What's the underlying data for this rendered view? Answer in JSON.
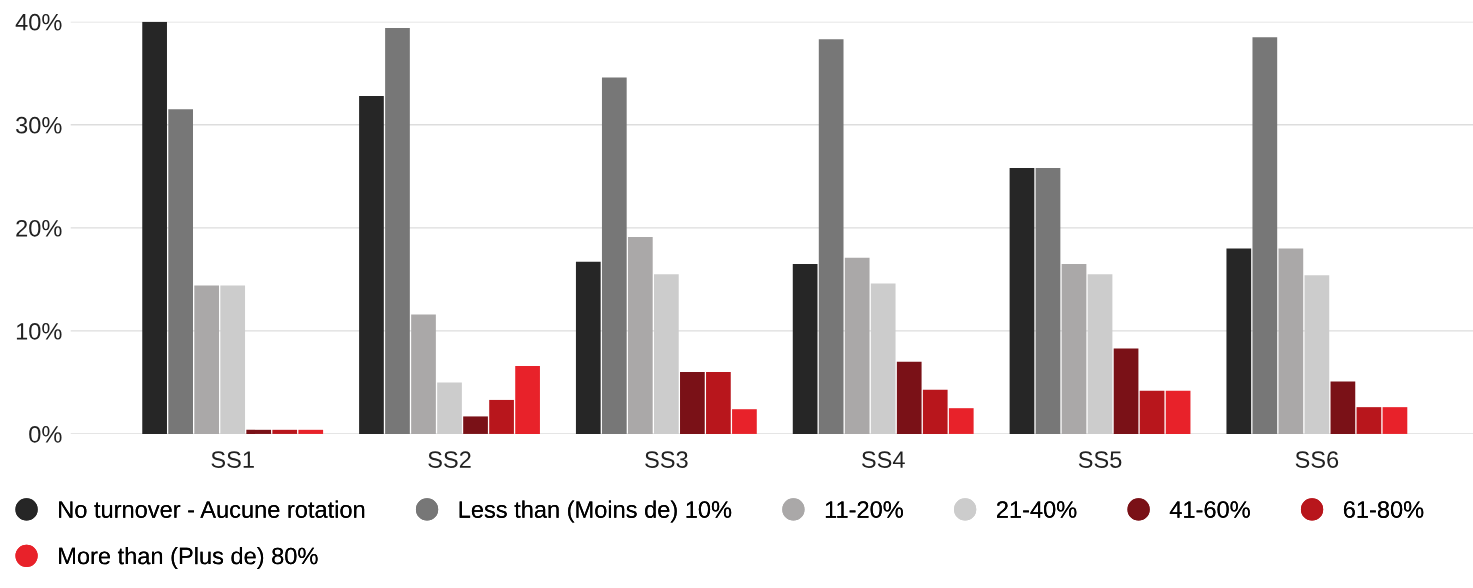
{
  "chart_data": {
    "type": "bar",
    "categories": [
      "SS1",
      "SS2",
      "SS3",
      "SS4",
      "SS5",
      "SS6"
    ],
    "series": [
      {
        "name": "No turnover - Aucune rotation",
        "color": "#262626",
        "values": [
          40.0,
          32.8,
          16.7,
          16.5,
          25.8,
          18.0
        ]
      },
      {
        "name": "Less than (Moins de) 10%",
        "color": "#777777",
        "values": [
          31.5,
          39.4,
          34.6,
          38.3,
          25.8,
          38.5
        ]
      },
      {
        "name": "11-20%",
        "color": "#aaa8a8",
        "values": [
          14.4,
          11.6,
          19.1,
          17.1,
          16.5,
          18.0
        ]
      },
      {
        "name": "21-40%",
        "color": "#cccccc",
        "values": [
          14.4,
          5.0,
          15.5,
          14.6,
          15.5,
          15.4
        ]
      },
      {
        "name": "41-60%",
        "color": "#7a1117",
        "values": [
          0.4,
          1.7,
          6.0,
          7.0,
          8.3,
          5.1
        ]
      },
      {
        "name": "61-80%",
        "color": "#b8161c",
        "values": [
          0.4,
          3.3,
          6.0,
          4.3,
          4.2,
          2.6
        ]
      },
      {
        "name": "More than (Plus de) 80%",
        "color": "#e8222a",
        "values": [
          0.4,
          6.6,
          2.4,
          2.5,
          4.2,
          2.6
        ]
      }
    ],
    "ylim": [
      0,
      40
    ],
    "yticks": [
      {
        "value": 0,
        "label": "0%"
      },
      {
        "value": 10,
        "label": "10%"
      },
      {
        "value": 20,
        "label": "20%"
      },
      {
        "value": 30,
        "label": "30%"
      },
      {
        "value": 40,
        "label": "40%"
      }
    ],
    "grid": "y",
    "legend": "bottom",
    "marker": "circle"
  }
}
